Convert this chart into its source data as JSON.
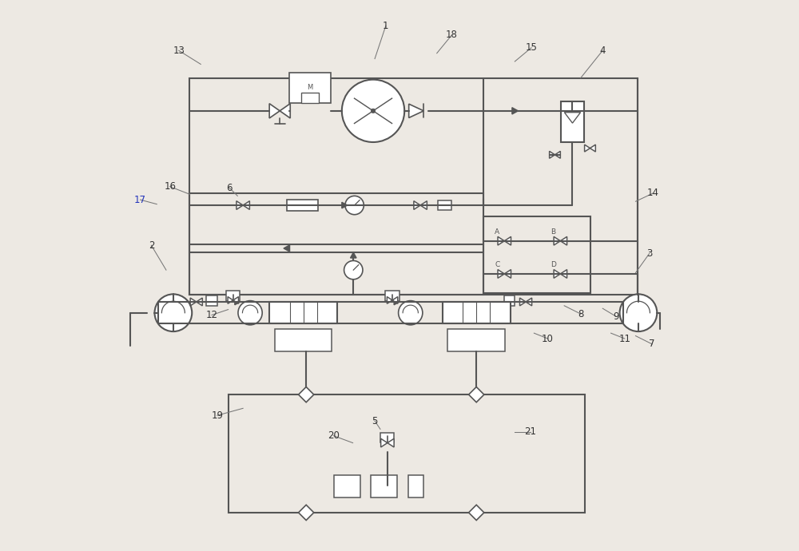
{
  "bg_color": "#ede9e3",
  "line_color": "#555555",
  "lw": 1.5,
  "lw2": 1.2,
  "label_positions": {
    "1": [
      0.475,
      0.955,
      0.455,
      0.895
    ],
    "2": [
      0.048,
      0.555,
      0.075,
      0.51
    ],
    "3": [
      0.955,
      0.54,
      0.93,
      0.505
    ],
    "4": [
      0.87,
      0.91,
      0.83,
      0.86
    ],
    "5": [
      0.455,
      0.235,
      0.465,
      0.22
    ],
    "6": [
      0.19,
      0.66,
      0.205,
      0.645
    ],
    "7": [
      0.96,
      0.375,
      0.93,
      0.39
    ],
    "8": [
      0.83,
      0.43,
      0.8,
      0.445
    ],
    "9": [
      0.895,
      0.425,
      0.87,
      0.44
    ],
    "10": [
      0.77,
      0.385,
      0.745,
      0.395
    ],
    "11": [
      0.91,
      0.385,
      0.885,
      0.395
    ],
    "12": [
      0.158,
      0.428,
      0.188,
      0.438
    ],
    "13": [
      0.098,
      0.91,
      0.138,
      0.885
    ],
    "14": [
      0.962,
      0.65,
      0.93,
      0.635
    ],
    "15": [
      0.74,
      0.915,
      0.71,
      0.89
    ],
    "16": [
      0.082,
      0.662,
      0.118,
      0.648
    ],
    "17": [
      0.028,
      0.638,
      0.058,
      0.63
    ],
    "18": [
      0.595,
      0.938,
      0.568,
      0.905
    ],
    "19": [
      0.168,
      0.245,
      0.215,
      0.258
    ],
    "20": [
      0.38,
      0.208,
      0.415,
      0.195
    ],
    "21": [
      0.738,
      0.215,
      0.71,
      0.215
    ]
  }
}
